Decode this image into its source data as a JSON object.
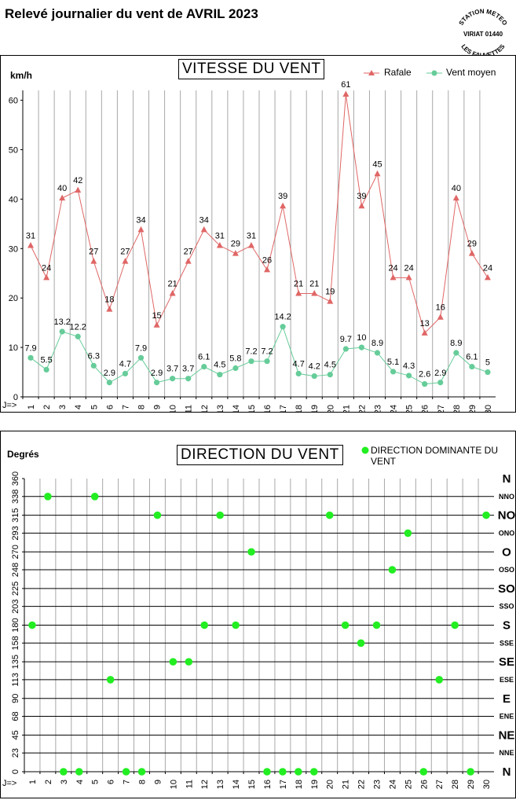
{
  "page": {
    "title": "Relevé journalier du vent de AVRIL 2023",
    "stamp": {
      "top": "STATION METEO",
      "middle": "VIRIAT 01440",
      "bottom": "LES FAUVETTES"
    }
  },
  "chart_data": [
    {
      "type": "line",
      "title": "VITESSE DU VENT",
      "ylabel": "km/h",
      "x_prefix": "J=>",
      "ylim": [
        0,
        62
      ],
      "yticks": [
        0,
        10,
        20,
        30,
        40,
        50,
        60
      ],
      "categories": [
        1,
        2,
        3,
        4,
        5,
        6,
        7,
        8,
        9,
        10,
        11,
        12,
        13,
        14,
        15,
        16,
        17,
        18,
        19,
        20,
        21,
        22,
        23,
        24,
        25,
        26,
        27,
        28,
        29,
        30
      ],
      "grid": "vertical",
      "legend_position": "top-right",
      "series": [
        {
          "name": "Rafale",
          "color": "#e06666",
          "marker": "triangle",
          "values": [
            30.6,
            24.1,
            40.2,
            41.8,
            27.4,
            17.7,
            27.4,
            33.8,
            14.5,
            20.9,
            27.4,
            33.8,
            30.6,
            29,
            30.6,
            25.7,
            38.6,
            20.9,
            20.9,
            19.3,
            61.2,
            38.6,
            45.1,
            24.1,
            24.1,
            12.9,
            16.1,
            40.2,
            29,
            24.1
          ],
          "labels": [
            "31",
            "24",
            "40",
            "42",
            "27",
            "18",
            "27",
            "34",
            "15",
            "21",
            "27",
            "34",
            "31",
            "29",
            "31",
            "26",
            "39",
            "21",
            "21",
            "19",
            "61",
            "39",
            "45",
            "24",
            "24",
            "13",
            "16",
            "40",
            "29",
            "24"
          ]
        },
        {
          "name": "Vent moyen",
          "color": "#66cc99",
          "marker": "circle",
          "values": [
            7.9,
            5.5,
            13.2,
            12.2,
            6.3,
            2.9,
            4.7,
            7.9,
            2.9,
            3.7,
            3.7,
            6.1,
            4.5,
            5.8,
            7.2,
            7.2,
            14.2,
            4.7,
            4.2,
            4.5,
            9.7,
            10,
            8.9,
            5.1,
            4.3,
            2.6,
            2.9,
            8.9,
            6.1,
            5
          ],
          "labels": [
            "7.9",
            "5.5",
            "13.2",
            "12.2",
            "6.3",
            "2.9",
            "4.7",
            "7.9",
            "2.9",
            "3.7",
            "3.7",
            "6.1",
            "4.5",
            "5.8",
            "7.2",
            "7.2",
            "14.2",
            "4.7",
            "4.2",
            "4.5",
            "9.7",
            "10",
            "8.9",
            "5.1",
            "4.3",
            "2.6",
            "2.9",
            "8.9",
            "6.1",
            "5"
          ]
        }
      ]
    },
    {
      "type": "scatter",
      "title": "DIRECTION DU VENT",
      "ylabel": "Degrés",
      "x_prefix": "J=>",
      "ylim": [
        0,
        360
      ],
      "yticks": [
        0,
        23,
        45,
        68,
        90,
        113,
        135,
        158,
        180,
        203,
        225,
        248,
        270,
        293,
        315,
        338,
        360
      ],
      "right_labels": [
        "N",
        "NNE",
        "NE",
        "ENE",
        "E",
        "ESE",
        "SE",
        "SSE",
        "S",
        "SSO",
        "SO",
        "OSO",
        "O",
        "ONO",
        "NO",
        "NNO",
        "N"
      ],
      "categories": [
        1,
        2,
        3,
        4,
        5,
        6,
        7,
        8,
        9,
        10,
        11,
        12,
        13,
        14,
        15,
        16,
        17,
        18,
        19,
        20,
        21,
        22,
        23,
        24,
        25,
        26,
        27,
        28,
        29,
        30
      ],
      "grid": "both",
      "legend_position": "top-right",
      "series": [
        {
          "name": "DIRECTION DOMINANTE DU VENT",
          "color": "#22ee22",
          "values": [
            180,
            338,
            0,
            0,
            338,
            113,
            0,
            0,
            315,
            135,
            135,
            180,
            315,
            180,
            270,
            0,
            0,
            0,
            0,
            315,
            180,
            158,
            180,
            248,
            293,
            0,
            113,
            180,
            0,
            315
          ]
        }
      ]
    }
  ]
}
